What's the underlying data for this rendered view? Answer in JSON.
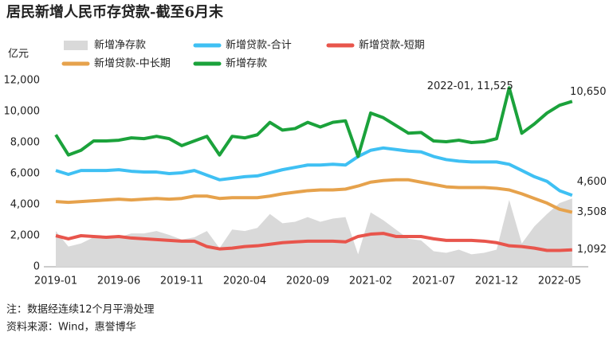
{
  "chart_data": {
    "type": "line",
    "title": "居民新增人民币存贷款-截至6月末",
    "y_axis_label": "亿元",
    "notes": [
      "注：数据经连续12个月平滑处理",
      "资料来源：Wind，惠誉博华"
    ],
    "categories": [
      "2019-01",
      null,
      null,
      null,
      null,
      "2019-06",
      null,
      null,
      null,
      null,
      "2019-11",
      null,
      null,
      null,
      null,
      "2020-04",
      null,
      null,
      null,
      null,
      "2020-09",
      null,
      null,
      null,
      null,
      "2021-02",
      null,
      null,
      null,
      null,
      "2021-07",
      null,
      null,
      null,
      null,
      "2021-12",
      null,
      null,
      null,
      null,
      "2022-05",
      null
    ],
    "ylim": [
      0,
      12000
    ],
    "yticks": [
      0,
      {
        "value": 2000,
        "label": "2,000"
      },
      {
        "value": 4000,
        "label": "4,000"
      },
      {
        "value": 6000,
        "label": "6,000"
      },
      {
        "value": 8000,
        "label": "8,000"
      },
      {
        "value": 10000,
        "label": "10,000"
      },
      {
        "value": 12000,
        "label": "12,000"
      }
    ],
    "grid": false,
    "series": [
      {
        "name": "新增净存款",
        "type": "area",
        "color": "#d9d9d9",
        "values": [
          2300,
          1300,
          1500,
          1900,
          1900,
          1900,
          2150,
          2150,
          2300,
          2050,
          1750,
          1900,
          2300,
          1200,
          2400,
          2300,
          2500,
          3400,
          2800,
          2900,
          3200,
          2900,
          3100,
          3200,
          800,
          3500,
          3000,
          2400,
          1800,
          1700,
          1000,
          900,
          1100,
          800,
          900,
          1100,
          4300,
          1500,
          2600,
          3400,
          4100,
          4400
        ]
      },
      {
        "name": "新增贷款-合计",
        "color": "#3fc0f3",
        "values": [
          6200,
          5950,
          6200,
          6200,
          6200,
          6250,
          6150,
          6100,
          6100,
          6000,
          6050,
          6200,
          5900,
          5600,
          5700,
          5800,
          5850,
          6050,
          6250,
          6400,
          6550,
          6550,
          6600,
          6550,
          7100,
          7500,
          7650,
          7550,
          7450,
          7400,
          7100,
          6900,
          6800,
          6750,
          6750,
          6750,
          6600,
          6200,
          5800,
          5500,
          4900,
          4600
        ],
        "value_labels": [
          null,
          null,
          null,
          null,
          null,
          null,
          null,
          null,
          null,
          null,
          null,
          null,
          null,
          null,
          null,
          null,
          null,
          null,
          null,
          null,
          null,
          null,
          null,
          null,
          null,
          null,
          null,
          null,
          null,
          null,
          null,
          null,
          null,
          null,
          null,
          null,
          null,
          null,
          null,
          null,
          null,
          "4,600"
        ]
      },
      {
        "name": "新增贷款-短期",
        "color": "#e8554c",
        "values": [
          2000,
          1800,
          2000,
          1950,
          1900,
          1950,
          1850,
          1800,
          1750,
          1700,
          1650,
          1650,
          1300,
          1150,
          1200,
          1300,
          1350,
          1450,
          1550,
          1600,
          1650,
          1650,
          1650,
          1600,
          1950,
          2100,
          2150,
          1950,
          1950,
          1950,
          1800,
          1700,
          1700,
          1700,
          1650,
          1550,
          1350,
          1300,
          1200,
          1050,
          1050,
          1092
        ],
        "value_labels": [
          null,
          null,
          null,
          null,
          null,
          null,
          null,
          null,
          null,
          null,
          null,
          null,
          null,
          null,
          null,
          null,
          null,
          null,
          null,
          null,
          null,
          null,
          null,
          null,
          null,
          null,
          null,
          null,
          null,
          null,
          null,
          null,
          null,
          null,
          null,
          null,
          null,
          null,
          null,
          null,
          null,
          "1,092"
        ]
      },
      {
        "name": "新增贷款-中长期",
        "color": "#e6a24c",
        "values": [
          4200,
          4150,
          4200,
          4250,
          4300,
          4350,
          4300,
          4350,
          4400,
          4350,
          4400,
          4550,
          4550,
          4400,
          4450,
          4450,
          4450,
          4550,
          4700,
          4800,
          4900,
          4950,
          4950,
          5000,
          5200,
          5450,
          5550,
          5600,
          5600,
          5450,
          5300,
          5150,
          5100,
          5100,
          5100,
          5050,
          4950,
          4700,
          4400,
          4100,
          3700,
          3508
        ],
        "value_labels": [
          null,
          null,
          null,
          null,
          null,
          null,
          null,
          null,
          null,
          null,
          null,
          null,
          null,
          null,
          null,
          null,
          null,
          null,
          null,
          null,
          null,
          null,
          null,
          null,
          null,
          null,
          null,
          null,
          null,
          null,
          null,
          null,
          null,
          null,
          null,
          null,
          null,
          null,
          null,
          null,
          null,
          "3,508"
        ]
      },
      {
        "name": "新增存款",
        "color": "#1ba23b",
        "values": [
          8500,
          7200,
          7500,
          8100,
          8100,
          8150,
          8300,
          8250,
          8400,
          8250,
          7800,
          8100,
          8400,
          7200,
          8400,
          8300,
          8500,
          9300,
          8800,
          8900,
          9300,
          9000,
          9300,
          9400,
          7100,
          9900,
          9600,
          9100,
          8600,
          8650,
          8100,
          8050,
          8150,
          8000,
          8050,
          8250,
          11525,
          8600,
          9200,
          9900,
          10400,
          10650
        ],
        "value_labels": [
          null,
          null,
          null,
          null,
          null,
          null,
          null,
          null,
          null,
          null,
          null,
          null,
          null,
          null,
          null,
          null,
          null,
          null,
          null,
          null,
          null,
          null,
          null,
          null,
          null,
          null,
          null,
          null,
          null,
          null,
          null,
          null,
          null,
          null,
          null,
          null,
          "2022-01, 11,525",
          null,
          null,
          null,
          null,
          "10,650"
        ]
      }
    ]
  }
}
